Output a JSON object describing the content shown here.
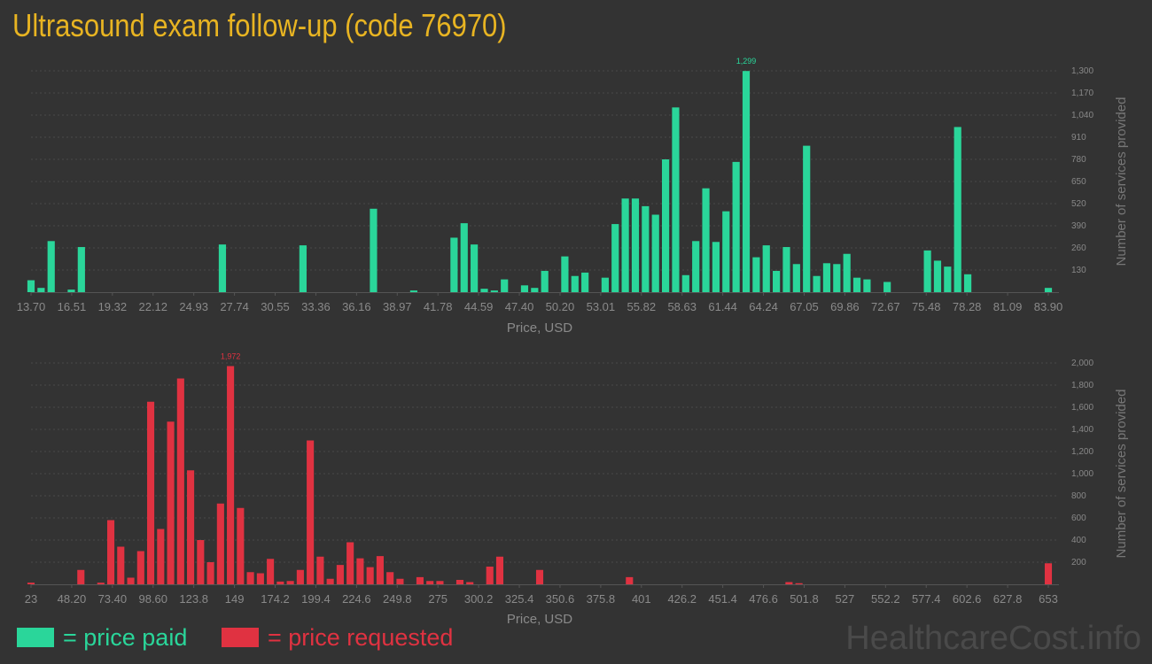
{
  "title": "Ultrasound exam follow-up (code 76970)",
  "colors": {
    "paid": "#2ad69a",
    "requested": "#e03241",
    "title": "#e8b422"
  },
  "legend": {
    "paid": "= price paid",
    "requested": "= price requested"
  },
  "watermark": "HealthcareCost.info",
  "chart_data": [
    {
      "type": "bar",
      "name": "price-paid",
      "xlabel": "Price, USD",
      "ylabel": "Number of services provided",
      "x_ticks": [
        "13.70",
        "16.51",
        "19.32",
        "22.12",
        "24.93",
        "27.74",
        "30.55",
        "33.36",
        "36.16",
        "38.97",
        "41.78",
        "44.59",
        "47.40",
        "50.20",
        "53.01",
        "55.82",
        "58.63",
        "61.44",
        "64.24",
        "67.05",
        "69.86",
        "72.67",
        "75.48",
        "78.28",
        "81.09",
        "83.90"
      ],
      "y_ticks": [
        "130",
        "260",
        "390",
        "520",
        "650",
        "780",
        "910",
        "1,040",
        "1,170",
        "1,300"
      ],
      "ylim": [
        0,
        1300
      ],
      "max_label": "1,299",
      "grid": true,
      "values": [
        70,
        25,
        300,
        0,
        15,
        265,
        0,
        0,
        0,
        0,
        0,
        0,
        0,
        0,
        0,
        0,
        0,
        0,
        0,
        280,
        0,
        0,
        0,
        0,
        0,
        0,
        0,
        275,
        0,
        0,
        0,
        0,
        0,
        0,
        490,
        0,
        0,
        0,
        10,
        0,
        0,
        0,
        320,
        405,
        280,
        20,
        10,
        75,
        0,
        40,
        25,
        125,
        0,
        210,
        95,
        115,
        0,
        85,
        400,
        550,
        550,
        505,
        455,
        780,
        1085,
        100,
        300,
        610,
        295,
        475,
        765,
        1299,
        205,
        275,
        125,
        265,
        165,
        860,
        95,
        170,
        165,
        225,
        85,
        75,
        0,
        60,
        0,
        0,
        0,
        245,
        185,
        150,
        970,
        105,
        0,
        0,
        0,
        0,
        0,
        0,
        0,
        25
      ]
    },
    {
      "type": "bar",
      "name": "price-requested",
      "xlabel": "Price, USD",
      "ylabel": "Number of services provided",
      "x_ticks": [
        "23",
        "48.20",
        "73.40",
        "98.60",
        "123.8",
        "149",
        "174.2",
        "199.4",
        "224.6",
        "249.8",
        "275",
        "300.2",
        "325.4",
        "350.6",
        "375.8",
        "401",
        "426.2",
        "451.4",
        "476.6",
        "501.8",
        "527",
        "552.2",
        "577.4",
        "602.6",
        "627.8",
        "653"
      ],
      "y_ticks": [
        "200",
        "400",
        "600",
        "800",
        "1,000",
        "1,200",
        "1,400",
        "1,600",
        "1,800",
        "2,000"
      ],
      "ylim": [
        0,
        2000
      ],
      "max_label": "1,972",
      "grid": true,
      "values": [
        15,
        0,
        0,
        0,
        0,
        130,
        0,
        15,
        580,
        340,
        60,
        300,
        1650,
        500,
        1470,
        1860,
        1030,
        400,
        200,
        730,
        1972,
        690,
        110,
        100,
        230,
        25,
        30,
        130,
        1300,
        250,
        50,
        175,
        380,
        235,
        155,
        255,
        110,
        50,
        0,
        65,
        30,
        30,
        0,
        40,
        20,
        0,
        160,
        250,
        0,
        0,
        0,
        130,
        0,
        0,
        0,
        0,
        0,
        0,
        0,
        0,
        65,
        0,
        0,
        0,
        0,
        0,
        0,
        0,
        0,
        0,
        0,
        0,
        0,
        0,
        0,
        0,
        20,
        10,
        0,
        0,
        0,
        0,
        0,
        0,
        0,
        0,
        0,
        0,
        0,
        0,
        0,
        0,
        0,
        0,
        0,
        0,
        0,
        0,
        0,
        0,
        0,
        0,
        190
      ]
    }
  ]
}
